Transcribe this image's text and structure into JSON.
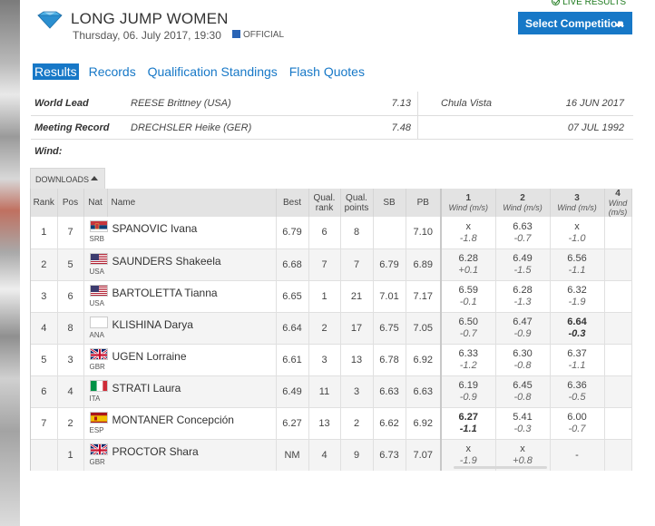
{
  "header": {
    "live_results": "LIVE RESULTS",
    "title": "LONG JUMP WOMEN",
    "date": "Thursday, 06. July 2017, 19:30",
    "official": "OFFICIAL",
    "select_competition": "Select Competition"
  },
  "tabs": [
    {
      "label": "Results",
      "active": true
    },
    {
      "label": "Records",
      "active": false
    },
    {
      "label": "Qualification Standings",
      "active": false
    },
    {
      "label": "Flash Quotes",
      "active": false
    }
  ],
  "records": [
    {
      "label": "World Lead",
      "name": "REESE Brittney (USA)",
      "mark": "7.13",
      "place": "Chula Vista",
      "date": "16 JUN 2017"
    },
    {
      "label": "Meeting Record",
      "name": "DRECHSLER Heike (GER)",
      "mark": "7.48",
      "place": "",
      "date": "07 JUL 1992"
    },
    {
      "label": "Wind:",
      "name": "",
      "mark": "",
      "place": "",
      "date": ""
    }
  ],
  "downloads_label": "DOWNLOADS",
  "table": {
    "headers": {
      "rank": "Rank",
      "pos": "Pos",
      "nat": "Nat",
      "name": "Name",
      "best": "Best",
      "qual_rank_1": "Qual.",
      "qual_rank_2": "rank",
      "qual_points_1": "Qual.",
      "qual_points_2": "points",
      "sb": "SB",
      "pb": "PB",
      "attempts": [
        "1",
        "2",
        "3",
        "4"
      ],
      "wind_label": "Wind (m/s)"
    },
    "rows": [
      {
        "rank": "1",
        "pos": "7",
        "nat": "SRB",
        "flag": "srb",
        "name": "SPANOVIC Ivana",
        "best": "6.79",
        "qrank": "6",
        "qpoints": "8",
        "sb": "",
        "pb": "7.10",
        "attempts": [
          {
            "m": "x",
            "w": "-1.8"
          },
          {
            "m": "6.63",
            "w": "-0.7"
          },
          {
            "m": "x",
            "w": "-1.0"
          }
        ],
        "best_attempt": -1
      },
      {
        "rank": "2",
        "pos": "5",
        "nat": "USA",
        "flag": "usa",
        "name": "SAUNDERS Shakeela",
        "best": "6.68",
        "qrank": "7",
        "qpoints": "7",
        "sb": "6.79",
        "pb": "6.89",
        "attempts": [
          {
            "m": "6.28",
            "w": "+0.1"
          },
          {
            "m": "6.49",
            "w": "-1.5"
          },
          {
            "m": "6.56",
            "w": "-1.1"
          }
        ],
        "best_attempt": -1
      },
      {
        "rank": "3",
        "pos": "6",
        "nat": "USA",
        "flag": "usa",
        "name": "BARTOLETTA Tianna",
        "best": "6.65",
        "qrank": "1",
        "qpoints": "21",
        "sb": "7.01",
        "pb": "7.17",
        "attempts": [
          {
            "m": "6.59",
            "w": "-0.1"
          },
          {
            "m": "6.28",
            "w": "-1.3"
          },
          {
            "m": "6.32",
            "w": "-1.9"
          }
        ],
        "best_attempt": -1
      },
      {
        "rank": "4",
        "pos": "8",
        "nat": "ANA",
        "flag": "ana",
        "name": "KLISHINA Darya",
        "best": "6.64",
        "qrank": "2",
        "qpoints": "17",
        "sb": "6.75",
        "pb": "7.05",
        "attempts": [
          {
            "m": "6.50",
            "w": "-0.7"
          },
          {
            "m": "6.47",
            "w": "-0.9"
          },
          {
            "m": "6.64",
            "w": "-0.3"
          }
        ],
        "best_attempt": 2
      },
      {
        "rank": "5",
        "pos": "3",
        "nat": "GBR",
        "flag": "gbr",
        "name": "UGEN Lorraine",
        "best": "6.61",
        "qrank": "3",
        "qpoints": "13",
        "sb": "6.78",
        "pb": "6.92",
        "attempts": [
          {
            "m": "6.33",
            "w": "-1.2"
          },
          {
            "m": "6.30",
            "w": "-0.8"
          },
          {
            "m": "6.37",
            "w": "-1.1"
          }
        ],
        "best_attempt": -1
      },
      {
        "rank": "6",
        "pos": "4",
        "nat": "ITA",
        "flag": "ita",
        "name": "STRATI Laura",
        "best": "6.49",
        "qrank": "11",
        "qpoints": "3",
        "sb": "6.63",
        "pb": "6.63",
        "attempts": [
          {
            "m": "6.19",
            "w": "-0.9"
          },
          {
            "m": "6.45",
            "w": "-0.8"
          },
          {
            "m": "6.36",
            "w": "-0.5"
          }
        ],
        "best_attempt": -1
      },
      {
        "rank": "7",
        "pos": "2",
        "nat": "ESP",
        "flag": "esp",
        "name": "MONTANER Concepción",
        "best": "6.27",
        "qrank": "13",
        "qpoints": "2",
        "sb": "6.62",
        "pb": "6.92",
        "attempts": [
          {
            "m": "6.27",
            "w": "-1.1"
          },
          {
            "m": "5.41",
            "w": "-0.3"
          },
          {
            "m": "6.00",
            "w": "-0.7"
          }
        ],
        "best_attempt": 0
      },
      {
        "rank": "",
        "pos": "1",
        "nat": "GBR",
        "flag": "gbr",
        "name": "PROCTOR Shara",
        "best": "NM",
        "qrank": "4",
        "qpoints": "9",
        "sb": "6.73",
        "pb": "7.07",
        "attempts": [
          {
            "m": "x",
            "w": "-1.9"
          },
          {
            "m": "x",
            "w": "+0.8"
          },
          {
            "m": "-",
            "w": ""
          }
        ],
        "best_attempt": -1
      }
    ]
  },
  "colors": {
    "accent": "#1778c7",
    "official": "#2a64b5",
    "live": "#1e7a1e"
  }
}
